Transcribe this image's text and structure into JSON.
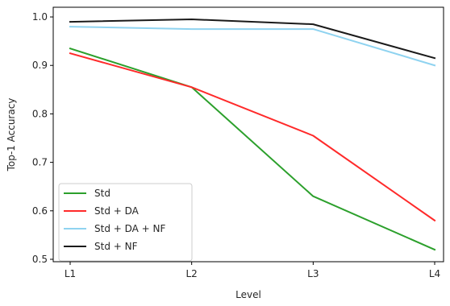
{
  "chart_data": {
    "type": "line",
    "title": "",
    "xlabel": "Level",
    "ylabel": "Top-1 Accuracy",
    "categories": [
      "L1",
      "L2",
      "L3",
      "L4"
    ],
    "ylim": [
      0.495,
      1.02
    ],
    "yticks": [
      0.5,
      0.6,
      0.7,
      0.8,
      0.9,
      1.0
    ],
    "ytick_labels": [
      "0.5",
      "0.6",
      "0.7",
      "0.8",
      "0.9",
      "1.0"
    ],
    "grid": false,
    "legend_position": "lower-left",
    "series": [
      {
        "name": "Std",
        "color": "#2ca02c",
        "values": [
          0.935,
          0.855,
          0.63,
          0.52
        ]
      },
      {
        "name": "Std + DA",
        "color": "#ff2a2a",
        "values": [
          0.925,
          0.855,
          0.755,
          0.58
        ]
      },
      {
        "name": "Std + DA + NF",
        "color": "#8fd3f0",
        "values": [
          0.98,
          0.975,
          0.975,
          0.9
        ]
      },
      {
        "name": "Std + NF",
        "color": "#1a1a1a",
        "values": [
          0.99,
          0.995,
          0.985,
          0.915
        ]
      }
    ]
  }
}
